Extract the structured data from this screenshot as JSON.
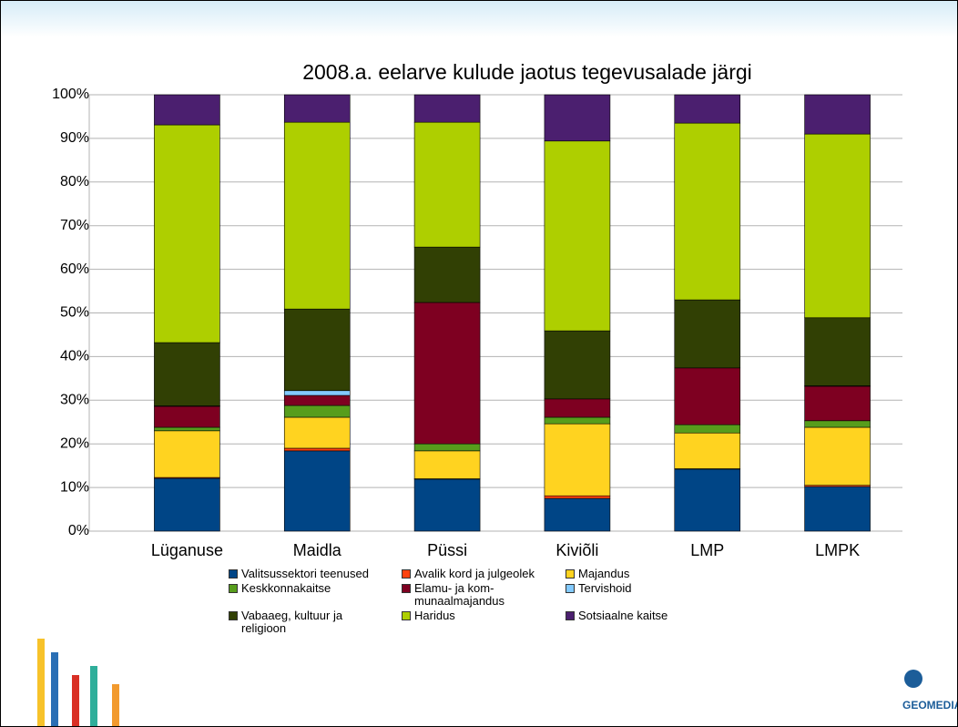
{
  "chart_data": {
    "type": "stacked_bar_percent",
    "title": "2008.a. eelarve kulude jaotus tegevusalade järgi",
    "categories": [
      "Lüganuse",
      "Maidla",
      "Püssi",
      "Kiviõli",
      "LMP",
      "LMPK"
    ],
    "series": [
      {
        "name": "Valitsussektori teenused",
        "color": "#004586",
        "values": [
          12.1,
          18.4,
          11.9,
          7.5,
          14.2,
          10.2
        ]
      },
      {
        "name": "Avalik kord ja julgeolek",
        "color": "#ff420e",
        "values": [
          0.2,
          0.6,
          0.1,
          0.6,
          0.1,
          0.3
        ]
      },
      {
        "name": "Majandus",
        "color": "#ffd320",
        "values": [
          10.7,
          7.1,
          6.4,
          16.5,
          8.2,
          13.3
        ]
      },
      {
        "name": "Keskkonnakaitse",
        "color": "#579d1c",
        "values": [
          0.8,
          2.7,
          1.6,
          1.5,
          1.9,
          1.5
        ]
      },
      {
        "name": "Elamu- ja kom-munaalmajandus",
        "color": "#7e0021",
        "values": [
          4.8,
          2.3,
          32.4,
          4.2,
          13.0,
          7.9
        ]
      },
      {
        "name": "Tervishoid",
        "color": "#83caff",
        "values": [
          0.1,
          1.1,
          0,
          0,
          0,
          0.1
        ]
      },
      {
        "name": "Vabaaeg, kultuur ja religioon",
        "color": "#314004",
        "values": [
          14.5,
          18.7,
          12.7,
          15.6,
          15.6,
          15.6
        ]
      },
      {
        "name": "Haridus",
        "color": "#aecf00",
        "values": [
          49.9,
          42.8,
          28.6,
          43.5,
          40.5,
          42.1
        ]
      },
      {
        "name": "Sotsiaalne kaitse",
        "color": "#4b1f6f",
        "values": [
          6.9,
          6.3,
          6.3,
          10.6,
          6.5,
          9.0
        ]
      }
    ],
    "ylim": [
      0,
      100
    ],
    "yticks": [
      {
        "value": 0,
        "label": "0%"
      },
      {
        "value": 10,
        "label": "10%"
      },
      {
        "value": 20,
        "label": "20%"
      },
      {
        "value": 30,
        "label": "30%"
      },
      {
        "value": 40,
        "label": "40%"
      },
      {
        "value": 50,
        "label": "50%"
      },
      {
        "value": 60,
        "label": "60%"
      },
      {
        "value": 70,
        "label": "70%"
      },
      {
        "value": 80,
        "label": "80%"
      },
      {
        "value": 90,
        "label": "90%"
      },
      {
        "value": 100,
        "label": "100%"
      }
    ],
    "grid": true
  },
  "logo": "GEOMEDIA"
}
